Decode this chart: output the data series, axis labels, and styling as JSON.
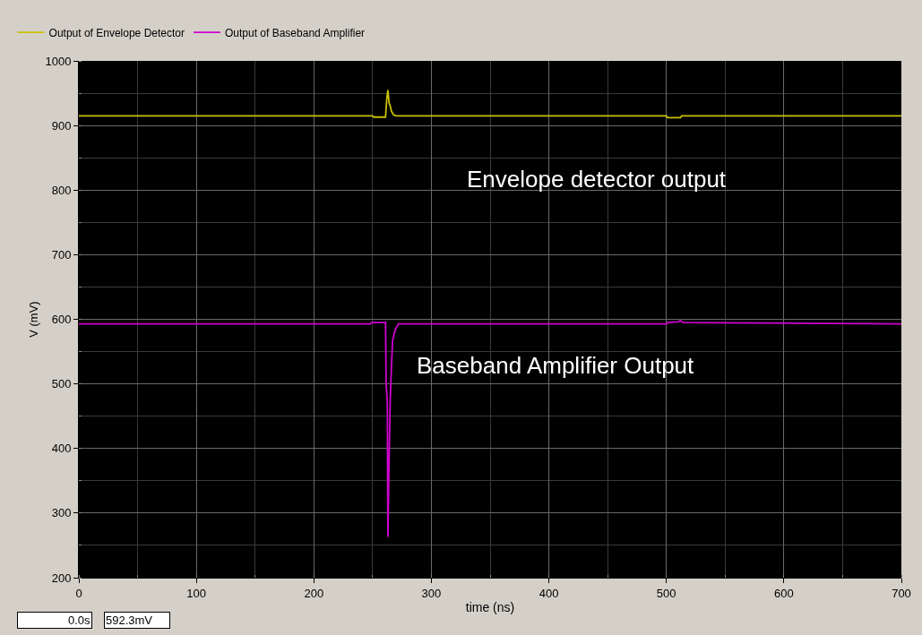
{
  "chart_data": {
    "type": "line",
    "xlabel": "time (ns)",
    "ylabel": "V (mV)",
    "xlim": [
      0,
      700
    ],
    "xticks": [
      0,
      100,
      200,
      300,
      400,
      500,
      600,
      700
    ],
    "ylim": [
      200,
      1000
    ],
    "yticks": [
      200,
      300,
      400,
      500,
      600,
      700,
      800,
      900,
      1000
    ],
    "grid": true,
    "legend": "top left",
    "marker": "none",
    "line_style": "solid",
    "series": [
      {
        "name": "Output of Envelope Detector",
        "color": "#c8c000",
        "x": [
          0,
          250,
          251,
          261,
          262,
          263,
          264,
          265,
          266,
          268,
          270,
          500,
          501,
          512,
          513,
          700
        ],
        "values": [
          915,
          915,
          913,
          913,
          940,
          955,
          935,
          930,
          922,
          916,
          915,
          915,
          912,
          912,
          915,
          915
        ]
      },
      {
        "name": "Output of Baseband Amplifier",
        "color": "#d000d0",
        "x": [
          0,
          248,
          249,
          261,
          261.5,
          262.5,
          263,
          264,
          265,
          266,
          267,
          268,
          269.5,
          272,
          275,
          500,
          501,
          510,
          512,
          514,
          700
        ],
        "values": [
          593,
          593,
          595,
          595,
          500,
          470,
          263,
          380,
          476,
          525,
          567,
          575,
          585,
          593,
          593,
          593,
          595,
          596,
          598,
          595,
          593
        ]
      }
    ],
    "annotations": [
      "Envelope detector output",
      "Baseband Amplifier Output",
      "0.0s",
      "592.3mV"
    ]
  }
}
